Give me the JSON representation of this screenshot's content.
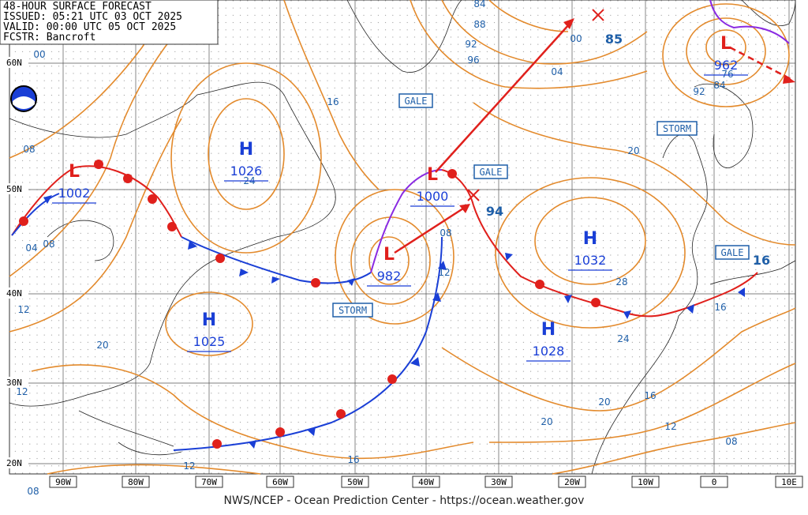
{
  "header": {
    "lines": [
      "48-HOUR SURFACE FORECAST",
      "ISSUED: 05:21 UTC 03 OCT 2025",
      "VALID: 00:00 UTC 05 OCT 2025",
      "FCSTR: Bancroft"
    ]
  },
  "lat_labels": [
    "60N",
    "50N",
    "40N",
    "30N",
    "20N"
  ],
  "lon_labels": [
    "90W",
    "80W",
    "70W",
    "60W",
    "50W",
    "40W",
    "30W",
    "20W",
    "10W",
    "0",
    "10E"
  ],
  "pressure_centers": [
    {
      "type": "H",
      "value": 1026
    },
    {
      "type": "L",
      "value": 1002
    },
    {
      "type": "H",
      "value": 1025
    },
    {
      "type": "L",
      "value": 982
    },
    {
      "type": "L",
      "value": 1000
    },
    {
      "type": "H",
      "value": 1032
    },
    {
      "type": "H",
      "value": 1028
    },
    {
      "type": "L",
      "value": 962
    }
  ],
  "isobar_labels": [
    "00",
    "08",
    "04",
    "08",
    "12",
    "20",
    "24",
    "16",
    "84",
    "88",
    "92",
    "96",
    "00",
    "04",
    "20",
    "28",
    "24",
    "16",
    "20",
    "16",
    "12",
    "08",
    "20",
    "16",
    "12",
    "08",
    "12",
    "08",
    "12",
    "76",
    "84",
    "92",
    "85",
    "94",
    "16"
  ],
  "warnings": [
    "GALE",
    "GALE",
    "STORM",
    "GALE",
    "STORM"
  ],
  "footer": "NWS/NCEP - Ocean Prediction Center - https://ocean.weather.gov"
}
